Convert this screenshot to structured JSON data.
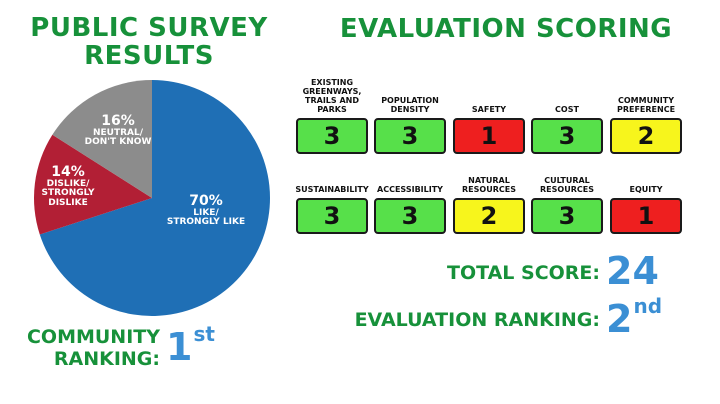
{
  "survey": {
    "title_line1": "PUBLIC SURVEY",
    "title_line2": "RESULTS",
    "community_label_line1": "COMMUNITY",
    "community_label_line2": "RANKING:",
    "community_rank_number": "1",
    "community_rank_suffix": "st"
  },
  "chart_data": {
    "type": "pie",
    "slices": [
      {
        "label": "LIKE/ STRONGLY LIKE",
        "line1": "LIKE/",
        "line2": "STRONGLY LIKE",
        "value": 70,
        "pct_text": "70%",
        "color": "#1f6fb5"
      },
      {
        "label": "DISLIKE/ STRONGLY DISLIKE",
        "line1": "DISLIKE/",
        "line2": "STRONGLY",
        "line3": "DISLIKE",
        "value": 14,
        "pct_text": "14%",
        "color": "#b21f35"
      },
      {
        "label": "NEUTRAL/ DON'T KNOW",
        "line1": "NEUTRAL/",
        "line2": "DON'T KNOW",
        "value": 16,
        "pct_text": "16%",
        "color": "#8c8c8c"
      }
    ]
  },
  "evaluation": {
    "title": "EVALUATION SCORING",
    "criteria": [
      {
        "name": "EXISTING GREENWAYS, TRAILS AND PARKS",
        "lines": [
          "EXISTING",
          "GREENWAYS,",
          "TRAILS AND",
          "PARKS"
        ],
        "score": "3",
        "color": "#57e04a"
      },
      {
        "name": "POPULATION DENSITY",
        "lines": [
          "POPULATION",
          "DENSITY"
        ],
        "score": "3",
        "color": "#57e04a"
      },
      {
        "name": "SAFETY",
        "lines": [
          "SAFETY"
        ],
        "score": "1",
        "color": "#ee1f1f"
      },
      {
        "name": "COST",
        "lines": [
          "COST"
        ],
        "score": "3",
        "color": "#57e04a"
      },
      {
        "name": "COMMUNITY PREFERENCE",
        "lines": [
          "COMMUNITY",
          "PREFERENCE"
        ],
        "score": "2",
        "color": "#f7f51c"
      },
      {
        "name": "SUSTAINABILITY",
        "lines": [
          "SUSTAINABILITY"
        ],
        "score": "3",
        "color": "#57e04a"
      },
      {
        "name": "ACCESSIBILITY",
        "lines": [
          "ACCESSIBILITY"
        ],
        "score": "3",
        "color": "#57e04a"
      },
      {
        "name": "NATURAL RESOURCES",
        "lines": [
          "NATURAL",
          "RESOURCES"
        ],
        "score": "2",
        "color": "#f7f51c"
      },
      {
        "name": "CULTURAL RESOURCES",
        "lines": [
          "CULTURAL",
          "RESOURCES"
        ],
        "score": "3",
        "color": "#57e04a"
      },
      {
        "name": "EQUITY",
        "lines": [
          "EQUITY"
        ],
        "score": "1",
        "color": "#ee1f1f"
      }
    ],
    "total_label": "TOTAL SCORE:",
    "total_value": "24",
    "ranking_label": "EVALUATION RANKING:",
    "ranking_number": "2",
    "ranking_suffix": "nd"
  }
}
